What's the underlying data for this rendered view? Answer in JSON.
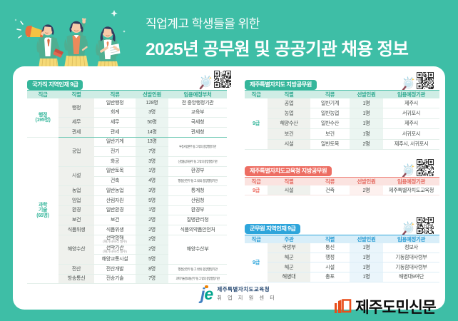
{
  "page": {
    "background_color": "#3EBEA6",
    "header": {
      "subtitle": "직업계고 학생들을 위한",
      "title": "2025년 공무원 및 공공기관 채용 정보",
      "illustration": "three-students-with-megaphone-illustration"
    },
    "footer": {
      "center_logo": {
        "mark": "je",
        "line1": "제주특별자치도교육청",
        "line2": "취 업 지 원 센 터"
      },
      "press_logo": {
        "icon": "newspaper-book-icon",
        "text": "제주도민신문",
        "icon_color": "#E84E1B"
      }
    }
  },
  "tables": [
    {
      "id": "national",
      "theme": "teal",
      "accent": "#35B69B",
      "title": "국가직 지역인재 9급",
      "icons": [
        "magnifier-icon",
        "qr-code-icon"
      ],
      "columns": [
        "직급",
        "직렬",
        "직류",
        "선발인원",
        "임용예정부처"
      ],
      "rows": [
        [
          {
            "t": "행정\n(195명)",
            "rs": 4
          },
          {
            "t": "행정",
            "rs": 2
          },
          {
            "t": "일반행정"
          },
          {
            "t": "128명"
          },
          {
            "t": "전 중앙행정기관"
          }
        ],
        [
          {
            "t": "회계"
          },
          {
            "t": "3명"
          },
          {
            "t": "교육부"
          }
        ],
        [
          {
            "t": "세무"
          },
          {
            "t": "세무"
          },
          {
            "t": "50명"
          },
          {
            "t": "국세청"
          }
        ],
        [
          {
            "t": "관세",
            "se": 1
          },
          {
            "t": "관세",
            "ge": 1
          },
          {
            "t": "14명",
            "ge": 1
          },
          {
            "t": "관세청",
            "ge": 1
          }
        ],
        [
          {
            "t": "과학\n기술\n(65명)",
            "rs": 15
          },
          {
            "t": "공업",
            "rs": 3
          },
          {
            "t": "일반기계"
          },
          {
            "t": "13명"
          },
          {
            "t": "우정사업본부 등 그 밖의 중앙행정기관",
            "rs": 2
          }
        ],
        [
          {
            "t": "전기"
          },
          {
            "t": "7명"
          }
        ],
        [
          {
            "t": "화공"
          },
          {
            "t": "3명"
          },
          {
            "t": "산업통상자원부 등 그 밖의 중앙행정기관"
          }
        ],
        [
          {
            "t": "시설",
            "rs": 2
          },
          {
            "t": "일반토목"
          },
          {
            "t": "1명"
          },
          {
            "t": "환경부"
          }
        ],
        [
          {
            "t": "건축"
          },
          {
            "t": "4명"
          },
          {
            "t": "행정안전부 등 그 밖의 중앙행정기관"
          }
        ],
        [
          {
            "t": "농업"
          },
          {
            "t": "일반농업"
          },
          {
            "t": "3명"
          },
          {
            "t": "통계청"
          }
        ],
        [
          {
            "t": "임업"
          },
          {
            "t": "산림자원"
          },
          {
            "t": "5명"
          },
          {
            "t": "산림청"
          }
        ],
        [
          {
            "t": "환경"
          },
          {
            "t": "일반환경"
          },
          {
            "t": "1명"
          },
          {
            "t": "환경부"
          }
        ],
        [
          {
            "t": "보건"
          },
          {
            "t": "보건"
          },
          {
            "t": "2명"
          },
          {
            "t": "질병관리청"
          }
        ],
        [
          {
            "t": "식품위생"
          },
          {
            "t": "식품위생"
          },
          {
            "t": "2명"
          },
          {
            "t": "식품의약품안전처"
          }
        ],
        [
          {
            "t": "해양수산",
            "rs": 3
          },
          {
            "t": "선박항해",
            "n": "(해기사자격 필수)"
          },
          {
            "t": "2명"
          },
          {
            "t": "해양수산부",
            "rs": 3
          }
        ],
        [
          {
            "t": "선박기관",
            "n": "(해기사자격 필수)"
          },
          {
            "t": "2명"
          }
        ],
        [
          {
            "t": "해양교통시설"
          },
          {
            "t": "5명"
          }
        ],
        [
          {
            "t": "전산"
          },
          {
            "t": "전산개발"
          },
          {
            "t": "8명"
          },
          {
            "t": "행정안전부 등 그 밖의 중앙행정기관"
          }
        ],
        [
          {
            "t": "방송통신"
          },
          {
            "t": "전송기술"
          },
          {
            "t": "7명"
          },
          {
            "t": "과학기술정보통신부 등 그 밖의 중앙행정기관"
          }
        ]
      ]
    },
    {
      "id": "jeju",
      "theme": "teal",
      "accent": "#35B69B",
      "title": "제주특별자치도 지방공무원",
      "icons": [
        "magnifier-icon",
        "qr-code-icon"
      ],
      "columns": [
        "직급",
        "직렬",
        "직류",
        "선발인원",
        "임용예정기관"
      ],
      "rows": [
        [
          {
            "t": "9급",
            "rs": 5
          },
          {
            "t": "공업"
          },
          {
            "t": "일반기계"
          },
          {
            "t": "1명"
          },
          {
            "t": "제주시"
          }
        ],
        [
          {
            "t": "농업"
          },
          {
            "t": "일반농업"
          },
          {
            "t": "1명"
          },
          {
            "t": "서귀포시"
          }
        ],
        [
          {
            "t": "해양수산"
          },
          {
            "t": "일반수산"
          },
          {
            "t": "1명"
          },
          {
            "t": "제주시"
          }
        ],
        [
          {
            "t": "보건"
          },
          {
            "t": "보건"
          },
          {
            "t": "1명"
          },
          {
            "t": "서귀포시"
          }
        ],
        [
          {
            "t": "시설"
          },
          {
            "t": "일반토목"
          },
          {
            "t": "2명"
          },
          {
            "t": "제주시, 서귀포시"
          }
        ]
      ]
    },
    {
      "id": "edu",
      "theme": "pink",
      "accent": "#ED6E63",
      "title": "제주특별자치도교육청 지방공무원",
      "icons": [
        "magnifier-icon",
        "qr-code-icon"
      ],
      "columns": [
        "직급",
        "직렬",
        "직류",
        "선발인원",
        "임용예정기관"
      ],
      "rows": [
        [
          {
            "t": "9급"
          },
          {
            "t": "시설"
          },
          {
            "t": "건축"
          },
          {
            "t": "2명"
          },
          {
            "t": "제주특별자치도교육청"
          }
        ]
      ]
    },
    {
      "id": "military",
      "theme": "blue",
      "accent": "#2EA5DB",
      "title": "군무원 지역인재 9급",
      "icons": [
        "magnifier-icon",
        "qr-code-icon"
      ],
      "columns": [
        "직급",
        "주관",
        "직렬",
        "선발인원",
        "임용예정기관"
      ],
      "rows": [
        [
          {
            "t": "9급",
            "rs": 4
          },
          {
            "t": "국방부"
          },
          {
            "t": "통신"
          },
          {
            "t": "1명"
          },
          {
            "t": "정보사"
          }
        ],
        [
          {
            "t": "해군"
          },
          {
            "t": "행정"
          },
          {
            "t": "1명"
          },
          {
            "t": "기동함대사령부"
          }
        ],
        [
          {
            "t": "해군"
          },
          {
            "t": "시설"
          },
          {
            "t": "1명"
          },
          {
            "t": "기동함대사령부"
          }
        ],
        [
          {
            "t": "해병대"
          },
          {
            "t": "총포"
          },
          {
            "t": "1명"
          },
          {
            "t": "해병대9여단"
          }
        ]
      ]
    }
  ]
}
